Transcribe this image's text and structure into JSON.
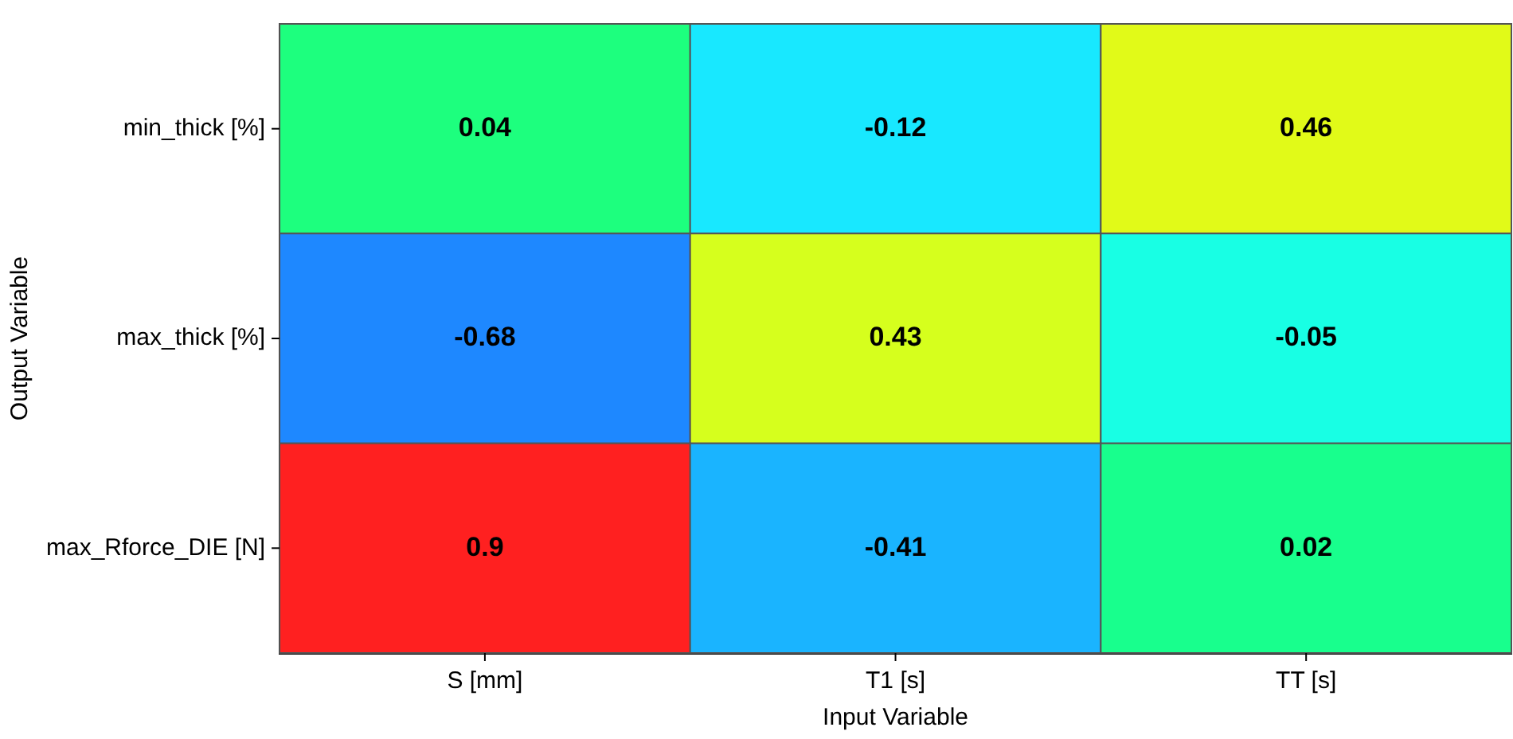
{
  "chart_data": {
    "type": "heatmap",
    "xlabel": "Input Variable",
    "ylabel": "Output Variable",
    "categories": [
      "S [mm]",
      "T1 [s]",
      "TT [s]"
    ],
    "y_categories": [
      "min_thick [%]",
      "max_thick [%]",
      "max_Rforce_DIE [N]"
    ],
    "cells": [
      [
        0.04,
        -0.12,
        0.46
      ],
      [
        -0.68,
        0.43,
        -0.05
      ],
      [
        0.9,
        -0.41,
        0.02
      ]
    ],
    "data_labels": true
  }
}
